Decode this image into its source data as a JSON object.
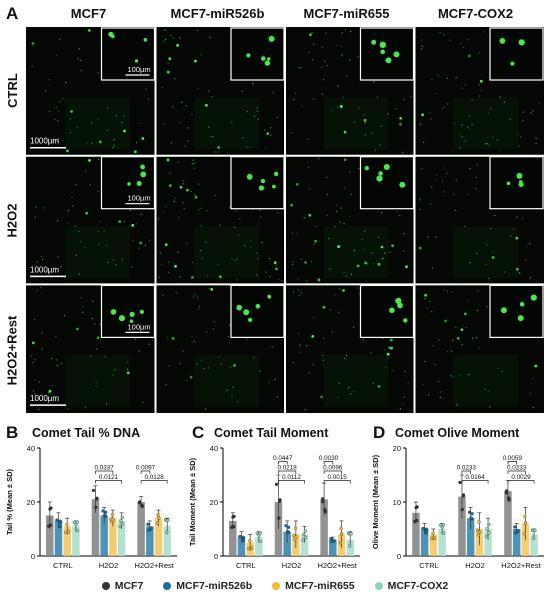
{
  "panels": {
    "a": "A",
    "b": "B",
    "c": "C",
    "d": "D"
  },
  "columns": [
    "MCF7",
    "MCF7-miR526b",
    "MCF7-miR655",
    "MCF7-COX2"
  ],
  "rows": [
    "CTRL",
    "H2O2",
    "H2O2+Rest"
  ],
  "scale_bars": {
    "large": "1000µm",
    "small": "100µm"
  },
  "colors": {
    "MCF7": "#7f7f7f",
    "MCF7-miR526b": "#2f7fa8",
    "MCF7-miR655": "#f2c45a",
    "MCF7-COX2": "#a8dcc8",
    "MCF7_dot": "#333333",
    "MCF7-miR526b_dot": "#1c6d9a",
    "MCF7-miR655_dot": "#f0b93a",
    "MCF7-COX2_dot": "#8fd2bb"
  },
  "legend": [
    "MCF7",
    "MCF7-miR526b",
    "MCF7-miR655",
    "MCF7-COX2"
  ],
  "chart_data": [
    {
      "type": "bar",
      "title": "Comet Tail % DNA",
      "ylabel": "Tail % (Mean ± SD)",
      "categories": [
        "CTRL",
        "H2O2",
        "H2O2+Rest"
      ],
      "ylim": [
        0,
        40
      ],
      "series": [
        {
          "name": "MCF7",
          "values": [
            15,
            21,
            20
          ],
          "sd": [
            5,
            5,
            2
          ]
        },
        {
          "name": "MCF7-miR526b",
          "values": [
            13,
            15,
            11
          ],
          "sd": [
            3,
            3,
            2
          ]
        },
        {
          "name": "MCF7-miR655",
          "values": [
            11,
            14,
            14
          ],
          "sd": [
            3,
            3,
            3
          ]
        },
        {
          "name": "MCF7-COX2",
          "values": [
            11,
            13,
            11
          ],
          "sd": [
            2,
            3,
            3
          ]
        }
      ],
      "brackets": [
        {
          "group": "H2O2",
          "from": 0,
          "to": 3,
          "label": "0.0121"
        },
        {
          "group": "H2O2",
          "from": 0,
          "to": 2,
          "label": "0.0337"
        },
        {
          "group": "H2O2+Rest",
          "from": 0,
          "to": 3,
          "label": "0.0128"
        },
        {
          "group": "H2O2+Rest",
          "from": 0,
          "to": 1,
          "label": "0.0097"
        }
      ]
    },
    {
      "type": "bar",
      "title": "Comet Tail Moment",
      "ylabel": "Tail Moment (Mean ± SD)",
      "categories": [
        "CTRL",
        "H2O2",
        "H2O2+Rest"
      ],
      "ylim": [
        0,
        40
      ],
      "series": [
        {
          "name": "MCF7",
          "values": [
            13,
            20,
            21
          ],
          "sd": [
            3,
            10,
            6
          ]
        },
        {
          "name": "MCF7-miR526b",
          "values": [
            7,
            9,
            6
          ],
          "sd": [
            2,
            4,
            1
          ]
        },
        {
          "name": "MCF7-miR655",
          "values": [
            5,
            8,
            8
          ],
          "sd": [
            3,
            5,
            5
          ]
        },
        {
          "name": "MCF7-COX2",
          "values": [
            7,
            8,
            6
          ],
          "sd": [
            2,
            3,
            3
          ]
        }
      ],
      "brackets": [
        {
          "group": "H2O2",
          "from": 0,
          "to": 3,
          "label": "0.0112"
        },
        {
          "group": "H2O2",
          "from": 0,
          "to": 2,
          "label": "0.0218"
        },
        {
          "group": "H2O2",
          "from": 0,
          "to": 1,
          "label": "0.0447"
        },
        {
          "group": "H2O2+Rest",
          "from": 0,
          "to": 3,
          "label": "0.0015"
        },
        {
          "group": "H2O2+Rest",
          "from": 0,
          "to": 2,
          "label": "0.0096"
        },
        {
          "group": "H2O2+Rest",
          "from": 0,
          "to": 1,
          "label": "0.0030"
        }
      ]
    },
    {
      "type": "bar",
      "title": "Comet Olive Moment",
      "ylabel": "Olive Moment (Mean ± SD)",
      "categories": [
        "CTRL",
        "H2O2",
        "H2O2+Rest"
      ],
      "ylim": [
        0,
        20
      ],
      "series": [
        {
          "name": "MCF7",
          "values": [
            8,
            11,
            12
          ],
          "sd": [
            2,
            4,
            2
          ]
        },
        {
          "name": "MCF7-miR526b",
          "values": [
            5,
            7,
            5
          ],
          "sd": [
            1,
            2,
            1
          ]
        },
        {
          "name": "MCF7-miR655",
          "values": [
            4,
            5,
            6
          ],
          "sd": [
            1,
            3,
            3
          ]
        },
        {
          "name": "MCF7-COX2",
          "values": [
            5,
            5,
            4
          ],
          "sd": [
            1,
            2,
            1
          ]
        }
      ],
      "brackets": [
        {
          "group": "H2O2",
          "from": 0,
          "to": 3,
          "label": "0.0164"
        },
        {
          "group": "H2O2",
          "from": 0,
          "to": 1,
          "label": "0.0233"
        },
        {
          "group": "H2O2+Rest",
          "from": 0,
          "to": 3,
          "label": "0.0029"
        },
        {
          "group": "H2O2+Rest",
          "from": 0,
          "to": 2,
          "label": "0.0233"
        },
        {
          "group": "H2O2+Rest",
          "from": 0,
          "to": 1,
          "label": "0.0059"
        }
      ]
    }
  ]
}
